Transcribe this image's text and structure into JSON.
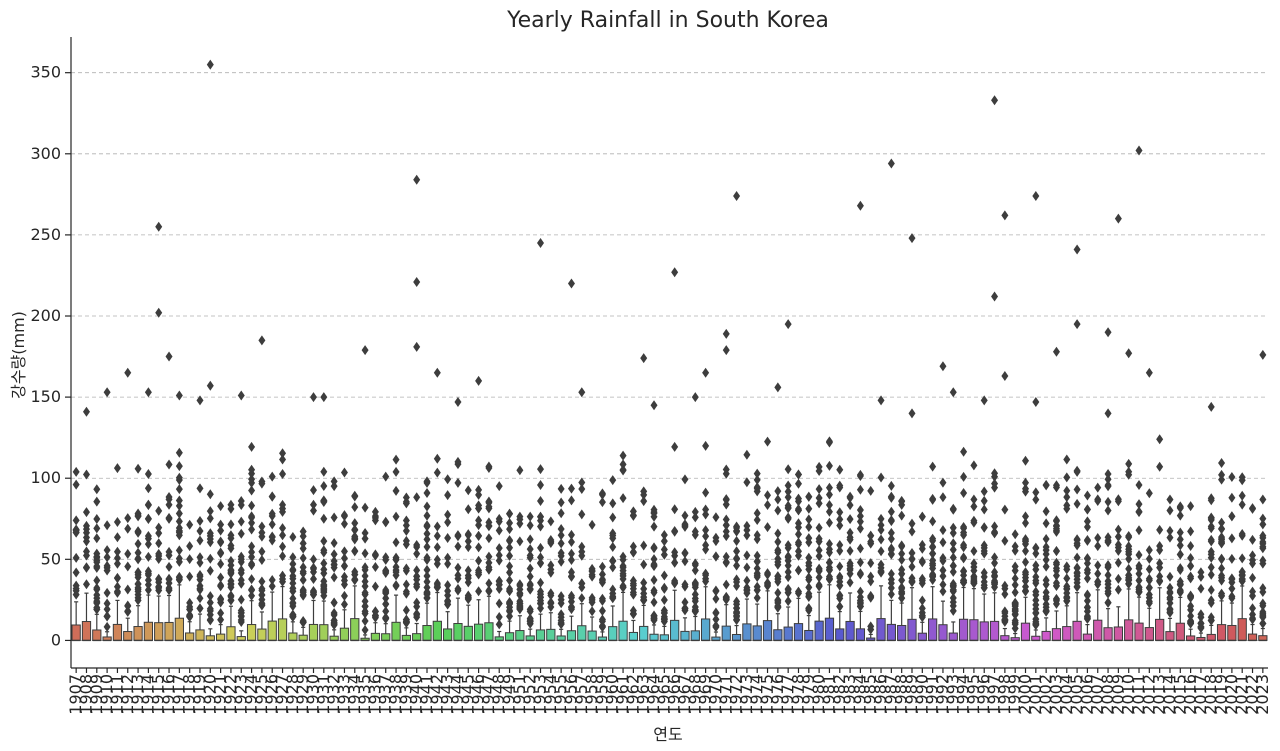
{
  "chart_data": {
    "type": "box",
    "title": "Yearly Rainfall in South Korea",
    "xlabel": "연도",
    "ylabel": "강수량(mm)",
    "ylim": [
      -17,
      372
    ],
    "yticks": [
      0,
      50,
      100,
      150,
      200,
      250,
      300,
      350
    ],
    "ytick_labels": [
      "0",
      "50",
      "100",
      "150",
      "200",
      "250",
      "300",
      "350"
    ],
    "grid": "horizontal dashed",
    "x_start_year": 1907,
    "x_end_year": 2023,
    "missing_years": [
      1950
    ],
    "box_q3_estimate_range": [
      1,
      14
    ],
    "notable_outliers": [
      {
        "year": 1920,
        "value": 355
      },
      {
        "year": 1997,
        "value": 333
      },
      {
        "year": 2011,
        "value": 302
      },
      {
        "year": 1987,
        "value": 294
      },
      {
        "year": 1940,
        "value": 284
      },
      {
        "year": 2001,
        "value": 274
      },
      {
        "year": 1972,
        "value": 274
      },
      {
        "year": 1984,
        "value": 268
      },
      {
        "year": 1998,
        "value": 262
      },
      {
        "year": 2009,
        "value": 260
      },
      {
        "year": 1915,
        "value": 255
      },
      {
        "year": 1989,
        "value": 248
      },
      {
        "year": 1953,
        "value": 245
      },
      {
        "year": 2005,
        "value": 241
      },
      {
        "year": 1966,
        "value": 227
      },
      {
        "year": 1940,
        "value": 221
      },
      {
        "year": 1956,
        "value": 220
      },
      {
        "year": 1997,
        "value": 212
      },
      {
        "year": 1915,
        "value": 202
      },
      {
        "year": 2005,
        "value": 195
      },
      {
        "year": 1977,
        "value": 195
      },
      {
        "year": 2008,
        "value": 190
      },
      {
        "year": 1971,
        "value": 189
      },
      {
        "year": 1925,
        "value": 185
      },
      {
        "year": 1940,
        "value": 181
      },
      {
        "year": 1971,
        "value": 179
      },
      {
        "year": 1935,
        "value": 179
      },
      {
        "year": 2003,
        "value": 178
      },
      {
        "year": 2010,
        "value": 177
      },
      {
        "year": 2023,
        "value": 176
      },
      {
        "year": 1916,
        "value": 175
      },
      {
        "year": 1963,
        "value": 174
      },
      {
        "year": 1992,
        "value": 169
      },
      {
        "year": 1912,
        "value": 165
      },
      {
        "year": 1969,
        "value": 165
      },
      {
        "year": 1942,
        "value": 165
      },
      {
        "year": 2012,
        "value": 165
      },
      {
        "year": 1998,
        "value": 163
      },
      {
        "year": 1946,
        "value": 160
      },
      {
        "year": 1920,
        "value": 157
      },
      {
        "year": 1976,
        "value": 156
      },
      {
        "year": 1910,
        "value": 153
      },
      {
        "year": 1957,
        "value": 153
      },
      {
        "year": 1993,
        "value": 153
      },
      {
        "year": 1914,
        "value": 153
      },
      {
        "year": 1917,
        "value": 151
      },
      {
        "year": 1923,
        "value": 151
      },
      {
        "year": 1930,
        "value": 150
      },
      {
        "year": 1931,
        "value": 150
      },
      {
        "year": 1968,
        "value": 150
      },
      {
        "year": 1986,
        "value": 148
      },
      {
        "year": 1996,
        "value": 148
      },
      {
        "year": 1919,
        "value": 148
      },
      {
        "year": 1944,
        "value": 147
      },
      {
        "year": 2001,
        "value": 147
      },
      {
        "year": 1964,
        "value": 145
      },
      {
        "year": 2018,
        "value": 144
      },
      {
        "year": 1908,
        "value": 141
      },
      {
        "year": 1989,
        "value": 140
      },
      {
        "year": 2008,
        "value": 140
      }
    ]
  }
}
